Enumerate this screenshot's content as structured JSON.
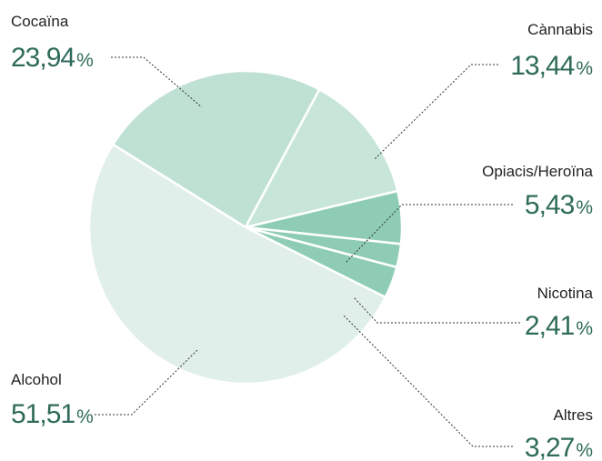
{
  "chart_data": {
    "type": "pie",
    "slices": [
      {
        "label": "Cocaïna",
        "value": 23.94,
        "value_text": "23,94",
        "unit": "%",
        "color": "#bfe1d3"
      },
      {
        "label": "Cànnabis",
        "value": 13.44,
        "value_text": "13,44",
        "unit": "%",
        "color": "#c7e6d8"
      },
      {
        "label": "Opiacis/Heroïna",
        "value": 5.43,
        "value_text": "5,43",
        "unit": "%",
        "color": "#8ecdb3"
      },
      {
        "label": "Nicotina",
        "value": 2.41,
        "value_text": "2,41",
        "unit": "%",
        "color": "#8ecdb3"
      },
      {
        "label": "Altres",
        "value": 3.27,
        "value_text": "3,27",
        "unit": "%",
        "color": "#8ecdb3"
      },
      {
        "label": "Alcohol",
        "value": 51.51,
        "value_text": "51,51",
        "unit": "%",
        "color": "#e0efe9"
      }
    ],
    "legend": "none",
    "label_color": "#2f6b5a"
  }
}
